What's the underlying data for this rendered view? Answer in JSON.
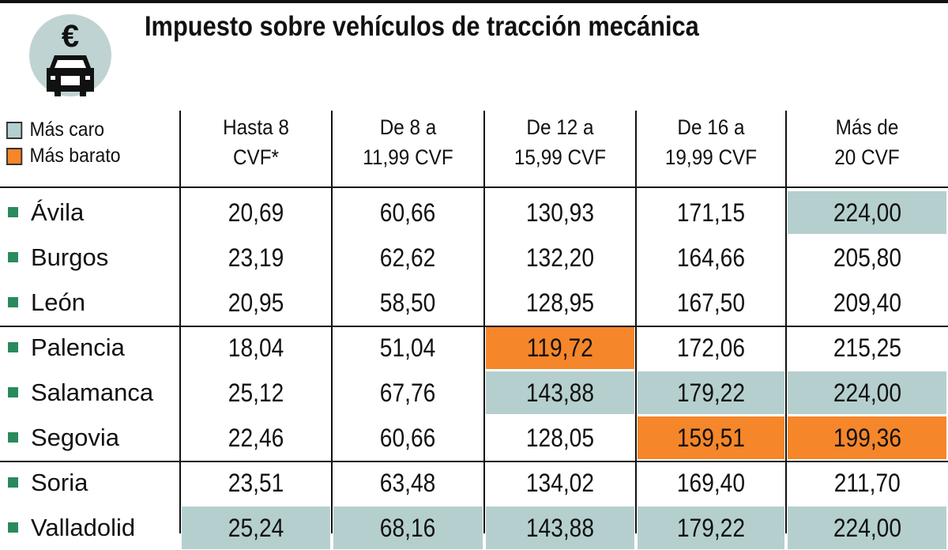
{
  "title": "Impuesto sobre vehículos de tracción mecánica",
  "icon": {
    "symbol": "€",
    "name": "euro-car-icon"
  },
  "colors": {
    "mas_caro": "#b5cfcf",
    "mas_barato": "#f5862a",
    "bullet": "#2a8a5e"
  },
  "legend": [
    {
      "label": "Más caro",
      "key": "caro"
    },
    {
      "label": "Más barato",
      "key": "barato"
    }
  ],
  "columns": [
    [
      "Hasta 8",
      "CVF*"
    ],
    [
      "De 8 a",
      "11,99 CVF"
    ],
    [
      "De 12 a",
      "15,99 CVF"
    ],
    [
      "De 16 a",
      "19,99 CVF"
    ],
    [
      "Más de",
      "20 CVF"
    ]
  ],
  "rows": [
    {
      "name": "Ávila",
      "values": [
        "20,69",
        "60,66",
        "130,93",
        "171,15",
        "224,00"
      ],
      "highlight": [
        null,
        null,
        null,
        null,
        "caro"
      ]
    },
    {
      "name": "Burgos",
      "values": [
        "23,19",
        "62,62",
        "132,20",
        "164,66",
        "205,80"
      ],
      "highlight": [
        null,
        null,
        null,
        null,
        null
      ]
    },
    {
      "name": "León",
      "values": [
        "20,95",
        "58,50",
        "128,95",
        "167,50",
        "209,40"
      ],
      "highlight": [
        null,
        null,
        null,
        null,
        null
      ]
    },
    {
      "name": "Palencia",
      "values": [
        "18,04",
        "51,04",
        "119,72",
        "172,06",
        "215,25"
      ],
      "highlight": [
        null,
        null,
        "barato",
        null,
        null
      ]
    },
    {
      "name": "Salamanca",
      "values": [
        "25,12",
        "67,76",
        "143,88",
        "179,22",
        "224,00"
      ],
      "highlight": [
        null,
        null,
        "caro",
        "caro",
        "caro"
      ]
    },
    {
      "name": "Segovia",
      "values": [
        "22,46",
        "60,66",
        "128,05",
        "159,51",
        "199,36"
      ],
      "highlight": [
        null,
        null,
        null,
        "barato",
        "barato"
      ]
    },
    {
      "name": "Soria",
      "values": [
        "23,51",
        "63,48",
        "134,02",
        "169,40",
        "211,70"
      ],
      "highlight": [
        null,
        null,
        null,
        null,
        null
      ]
    },
    {
      "name": "Valladolid",
      "values": [
        "25,24",
        "68,16",
        "143,88",
        "179,22",
        "224,00"
      ],
      "highlight": [
        "caro",
        "caro",
        "caro",
        "caro",
        "caro"
      ]
    }
  ]
}
